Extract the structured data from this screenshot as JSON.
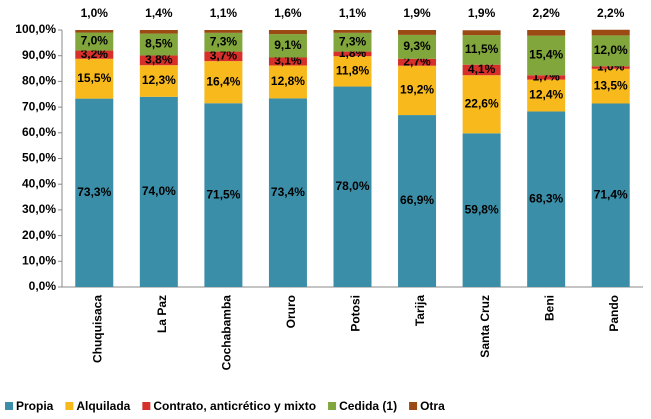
{
  "chart_data": {
    "type": "stacked_bar",
    "categories": [
      "Chuquisaca",
      "La Paz",
      "Cochabamba",
      "Oruro",
      "Potosi",
      "Tarija",
      "Santa Cruz",
      "Beni",
      "Pando"
    ],
    "series": [
      {
        "name": "Propia",
        "color": "#3b8ea8",
        "values": [
          73.3,
          74.0,
          71.5,
          73.4,
          78.0,
          66.9,
          59.8,
          68.3,
          71.4
        ],
        "value_labels": [
          "73,3%",
          "74,0%",
          "71,5%",
          "73,4%",
          "78,0%",
          "66,9%",
          "59,8%",
          "68,3%",
          "71,4%"
        ]
      },
      {
        "name": "Alquilada",
        "color": "#f8b91c",
        "values": [
          15.5,
          12.3,
          16.4,
          12.8,
          11.8,
          19.2,
          22.6,
          12.4,
          13.5
        ],
        "value_labels": [
          "15,5%",
          "12,3%",
          "16,4%",
          "12,8%",
          "11,8%",
          "19,2%",
          "22,6%",
          "12,4%",
          "13,5%"
        ]
      },
      {
        "name": "Contrato, anticrético y mixto",
        "color": "#d7302b",
        "values": [
          3.2,
          3.8,
          3.7,
          3.1,
          1.8,
          2.7,
          4.1,
          1.7,
          1.0
        ],
        "value_labels": [
          "3,2%",
          "3,8%",
          "3,7%",
          "3,1%",
          "1,8%",
          "2,7%",
          "4,1%",
          "1,7%",
          "1,0%"
        ]
      },
      {
        "name": "Cedida (1)",
        "color": "#80a63c",
        "values": [
          7.0,
          8.5,
          7.3,
          9.1,
          7.3,
          9.3,
          11.5,
          15.4,
          12.0
        ],
        "value_labels": [
          "7,0%",
          "8,5%",
          "7,3%",
          "9,1%",
          "7,3%",
          "9,3%",
          "11,5%",
          "15,4%",
          "12,0%"
        ]
      },
      {
        "name": "Otra",
        "color": "#9b4a13",
        "values": [
          1.0,
          1.4,
          1.1,
          1.6,
          1.1,
          1.9,
          1.9,
          2.2,
          2.2
        ],
        "value_labels": [
          "1,0%",
          "1,4%",
          "1,1%",
          "1,6%",
          "1,1%",
          "1,9%",
          "1,9%",
          "2,2%",
          "2,2%"
        ]
      }
    ],
    "ylim": [
      0,
      100
    ],
    "yticks": [
      {
        "value": 0,
        "label": "0,0%"
      },
      {
        "value": 10,
        "label": "10,0%"
      },
      {
        "value": 20,
        "label": "20,0%"
      },
      {
        "value": 30,
        "label": "30,0%"
      },
      {
        "value": 40,
        "label": "40,0%"
      },
      {
        "value": 50,
        "label": "50,0%"
      },
      {
        "value": 60,
        "label": "60,0%"
      },
      {
        "value": 70,
        "label": "70,0%"
      },
      {
        "value": 80,
        "label": "80,0%"
      },
      {
        "value": 90,
        "label": "90,0%"
      },
      {
        "value": 100,
        "label": "100,0%"
      }
    ],
    "legend": "bottom"
  }
}
